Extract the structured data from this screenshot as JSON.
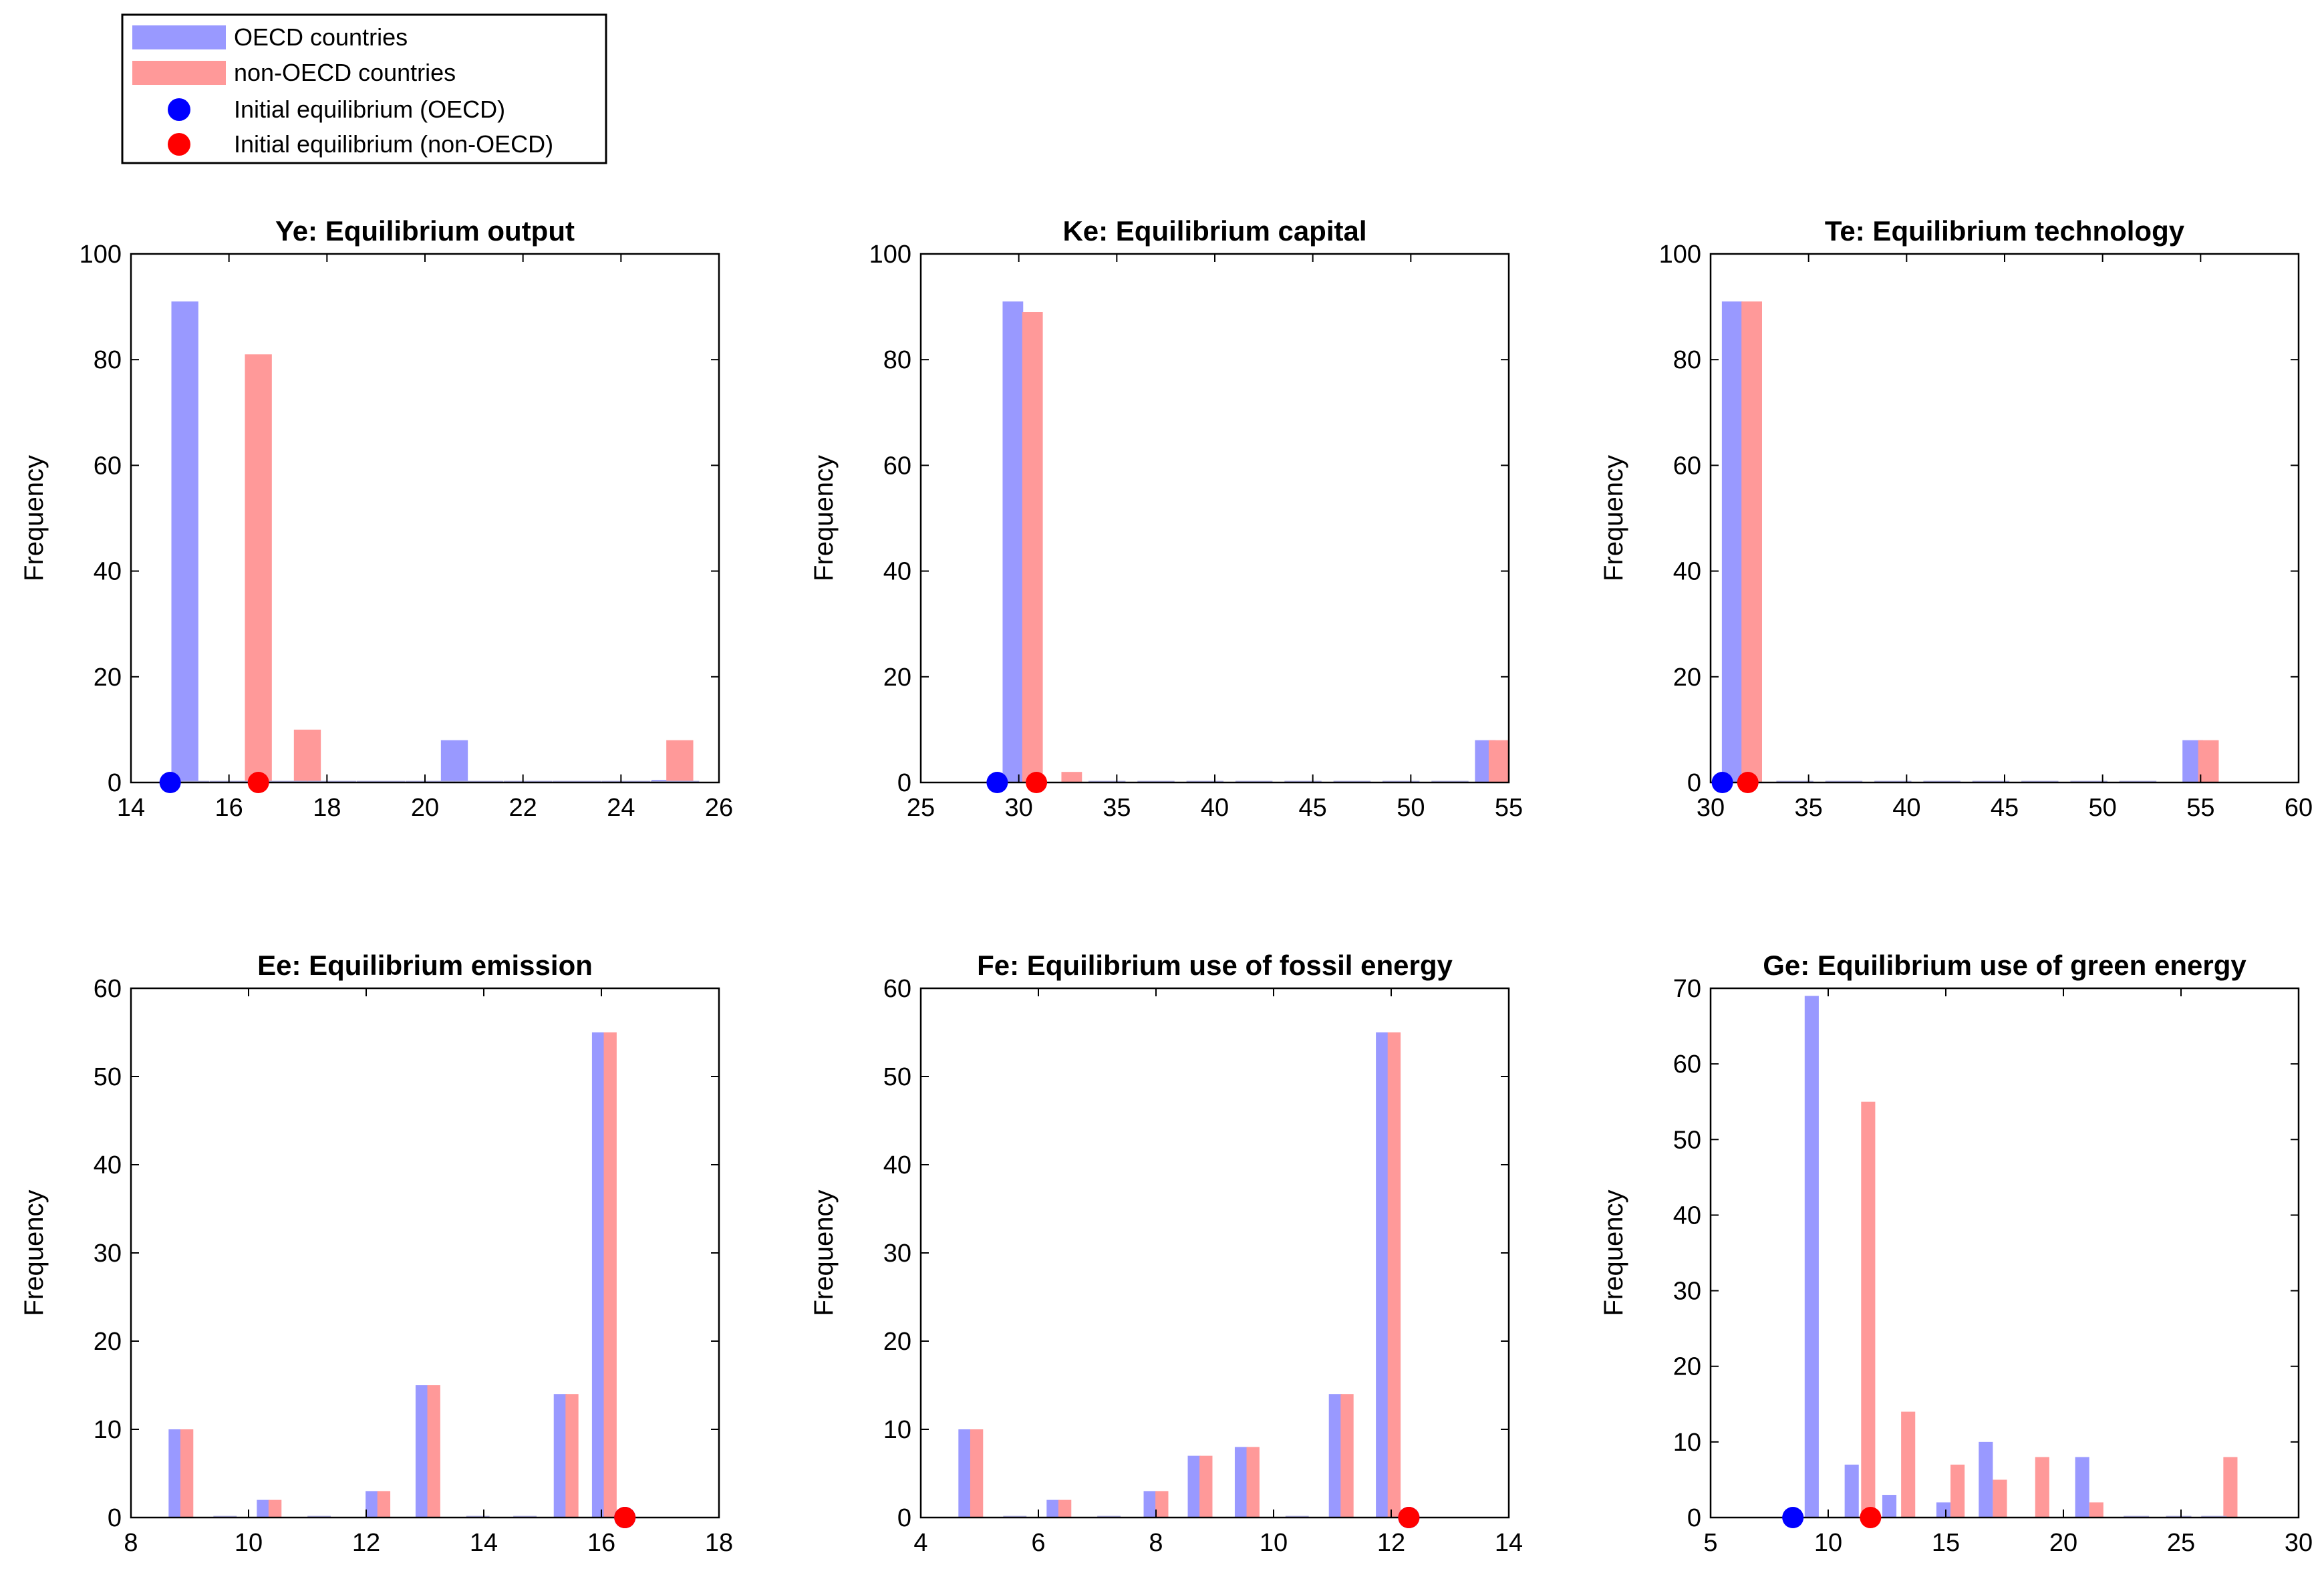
{
  "legend": {
    "items": [
      {
        "label": "OECD countries",
        "kind": "bar",
        "color": "#9999ff"
      },
      {
        "label": "non-OECD countries",
        "kind": "bar",
        "color": "#ff9999"
      },
      {
        "label": "Initial equilibrium (OECD)",
        "kind": "marker",
        "color": "#0000ff"
      },
      {
        "label": "Initial equilibrium (non-OECD)",
        "kind": "marker",
        "color": "#ff0000"
      }
    ]
  },
  "colors": {
    "oecd_bar": "#9999ff",
    "non_oecd_bar": "#ff9999",
    "oecd_marker": "#0000ff",
    "non_oecd_marker": "#ff0000"
  },
  "chart_data": [
    {
      "type": "bar",
      "title": "Ye: Equilibrium output",
      "xlabel": "",
      "ylabel": "Frequency",
      "xlim": [
        14,
        26
      ],
      "ylim": [
        0,
        100
      ],
      "xticks": [
        14,
        16,
        18,
        20,
        22,
        24,
        26
      ],
      "yticks": [
        0,
        20,
        40,
        60,
        80,
        100
      ],
      "bin_width": 0.55,
      "series": [
        {
          "name": "OECD countries",
          "x": [
            15.1,
            20.6,
            24.9
          ],
          "values": [
            91,
            8,
            0.5
          ]
        },
        {
          "name": "non-OECD countries",
          "x": [
            16.6,
            17.6,
            25.2
          ],
          "values": [
            81,
            10,
            8
          ]
        }
      ],
      "zero_ticks": [
        15.1,
        16.1,
        17.1,
        18.1,
        19.1,
        20.1,
        21.1,
        22.1,
        23.1,
        24.1,
        25.1
      ],
      "markers": [
        {
          "name": "Initial equilibrium (OECD)",
          "x": 14.8,
          "y": 0
        },
        {
          "name": "Initial equilibrium (non-OECD)",
          "x": 16.6,
          "y": 0
        }
      ]
    },
    {
      "type": "bar",
      "title": "Ke: Equilibrium capital",
      "xlabel": "",
      "ylabel": "Frequency",
      "xlim": [
        25,
        55
      ],
      "ylim": [
        0,
        100
      ],
      "xticks": [
        25,
        30,
        35,
        40,
        45,
        50,
        55
      ],
      "yticks": [
        0,
        20,
        40,
        60,
        80,
        100
      ],
      "bin_width": 1.05,
      "series": [
        {
          "name": "OECD countries",
          "x": [
            29.7,
            53.8
          ],
          "values": [
            91,
            8
          ]
        },
        {
          "name": "non-OECD countries",
          "x": [
            30.7,
            32.7,
            54.5
          ],
          "values": [
            89,
            2,
            8
          ]
        }
      ],
      "zero_ticks": [
        34.5,
        37,
        39.5,
        42,
        44.5,
        47,
        49.5,
        52
      ],
      "markers": [
        {
          "name": "Initial equilibrium (OECD)",
          "x": 28.9,
          "y": 0
        },
        {
          "name": "Initial equilibrium (non-OECD)",
          "x": 30.9,
          "y": 0
        }
      ]
    },
    {
      "type": "bar",
      "title": "Te: Equilibrium technology",
      "xlabel": "",
      "ylabel": "Frequency",
      "xlim": [
        30,
        60
      ],
      "ylim": [
        0,
        100
      ],
      "xticks": [
        30,
        35,
        40,
        45,
        50,
        55,
        60
      ],
      "yticks": [
        0,
        20,
        40,
        60,
        80,
        100
      ],
      "bin_width": 1.05,
      "series": [
        {
          "name": "OECD countries",
          "x": [
            31.1,
            54.6
          ],
          "values": [
            91,
            8
          ]
        },
        {
          "name": "non-OECD countries",
          "x": [
            32.1,
            55.4
          ],
          "values": [
            91,
            8
          ]
        }
      ],
      "zero_ticks": [
        34.3,
        36.8,
        39.3,
        41.8,
        44.3,
        46.8,
        49.3,
        51.8
      ],
      "markers": [
        {
          "name": "Initial equilibrium (OECD)",
          "x": 30.6,
          "y": 0
        },
        {
          "name": "Initial equilibrium (non-OECD)",
          "x": 31.9,
          "y": 0
        }
      ]
    },
    {
      "type": "bar",
      "title": "Ee: Equilibrium emission",
      "xlabel": "",
      "ylabel": "Frequency",
      "xlim": [
        8,
        18
      ],
      "ylim": [
        0,
        60
      ],
      "xticks": [
        8,
        10,
        12,
        14,
        16,
        18
      ],
      "yticks": [
        0,
        10,
        20,
        30,
        40,
        50,
        60
      ],
      "bin_width": 0.22,
      "series": [
        {
          "name": "OECD countries",
          "x": [
            8.75,
            10.25,
            12.1,
            12.95,
            15.3,
            15.95
          ],
          "values": [
            10,
            2,
            3,
            15,
            14,
            55
          ]
        },
        {
          "name": "non-OECD countries",
          "x": [
            8.95,
            10.45,
            12.3,
            13.15,
            15.5,
            16.15
          ],
          "values": [
            10,
            2,
            3,
            15,
            14,
            55
          ]
        }
      ],
      "zero_ticks": [
        9.6,
        11.2,
        13.9,
        14.7
      ],
      "markers": [
        {
          "name": "Initial equilibrium (OECD)",
          "x": 16.4,
          "y": 0
        },
        {
          "name": "Initial equilibrium (non-OECD)",
          "x": 16.4,
          "y": 0
        }
      ]
    },
    {
      "type": "bar",
      "title": "Fe: Equilibrium use of fossil energy",
      "xlabel": "",
      "ylabel": "Frequency",
      "xlim": [
        4,
        14
      ],
      "ylim": [
        0,
        60
      ],
      "xticks": [
        4,
        6,
        8,
        10,
        12,
        14
      ],
      "yticks": [
        0,
        10,
        20,
        30,
        40,
        50,
        60
      ],
      "bin_width": 0.22,
      "series": [
        {
          "name": "OECD countries",
          "x": [
            4.75,
            6.25,
            7.9,
            8.65,
            9.45,
            11.05,
            11.85
          ],
          "values": [
            10,
            2,
            3,
            7,
            8,
            14,
            55
          ]
        },
        {
          "name": "non-OECD countries",
          "x": [
            4.95,
            6.45,
            8.1,
            8.85,
            9.65,
            11.25,
            12.05
          ],
          "values": [
            10,
            2,
            3,
            7,
            8,
            14,
            55
          ]
        }
      ],
      "zero_ticks": [
        5.6,
        7.2,
        10.4
      ],
      "markers": [
        {
          "name": "Initial equilibrium (OECD)",
          "x": 12.3,
          "y": 0
        },
        {
          "name": "Initial equilibrium (non-OECD)",
          "x": 12.3,
          "y": 0
        }
      ]
    },
    {
      "type": "bar",
      "title": "Ge: Equilibrium use of green energy",
      "xlabel": "",
      "ylabel": "Frequency",
      "xlim": [
        5,
        30
      ],
      "ylim": [
        0,
        70
      ],
      "xticks": [
        5,
        10,
        15,
        20,
        25,
        30
      ],
      "yticks": [
        0,
        10,
        20,
        30,
        40,
        50,
        60,
        70
      ],
      "bin_width": 0.6,
      "series": [
        {
          "name": "OECD countries",
          "x": [
            9.3,
            11.0,
            12.6,
            14.9,
            16.7,
            20.8
          ],
          "values": [
            69,
            7,
            3,
            2,
            10,
            8
          ]
        },
        {
          "name": "non-OECD countries",
          "x": [
            11.7,
            13.4,
            15.5,
            17.3,
            19.1,
            21.4,
            27.1
          ],
          "values": [
            55,
            14,
            7,
            5,
            8,
            2,
            8
          ]
        }
      ],
      "zero_ticks": [
        23.1,
        24.9,
        26.4
      ],
      "markers": [
        {
          "name": "Initial equilibrium (OECD)",
          "x": 8.5,
          "y": 0
        },
        {
          "name": "Initial equilibrium (non-OECD)",
          "x": 11.8,
          "y": 0
        }
      ]
    }
  ]
}
